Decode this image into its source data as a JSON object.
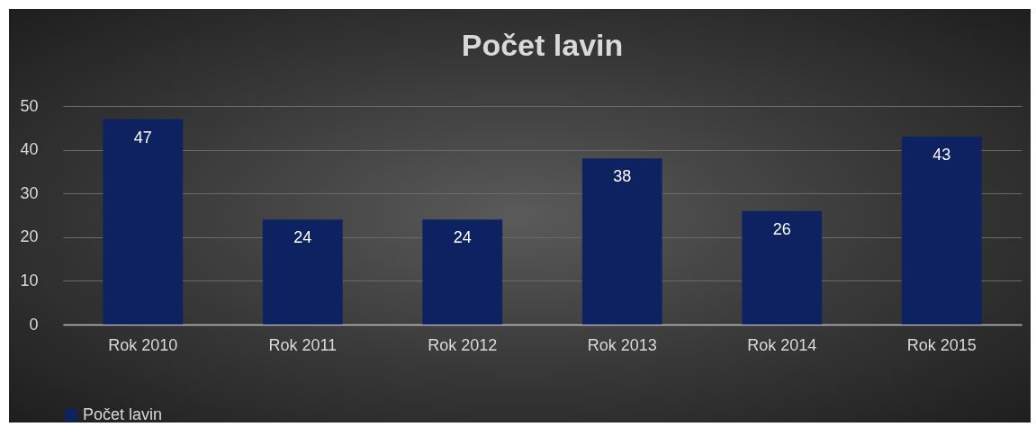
{
  "chart_data": {
    "type": "bar",
    "title": "Počet lavin",
    "categories": [
      "Rok 2010",
      "Rok 2011",
      "Rok 2012",
      "Rok 2013",
      "Rok 2014",
      "Rok 2015"
    ],
    "series": [
      {
        "name": "Počet lavin",
        "color": "#0e2160",
        "values": [
          47,
          24,
          24,
          38,
          26,
          43
        ]
      }
    ],
    "ylim": [
      0,
      50
    ],
    "yticks": [
      0,
      10,
      20,
      30,
      40,
      50
    ],
    "grid": "y",
    "legend": "bottom",
    "data_labels": true
  }
}
